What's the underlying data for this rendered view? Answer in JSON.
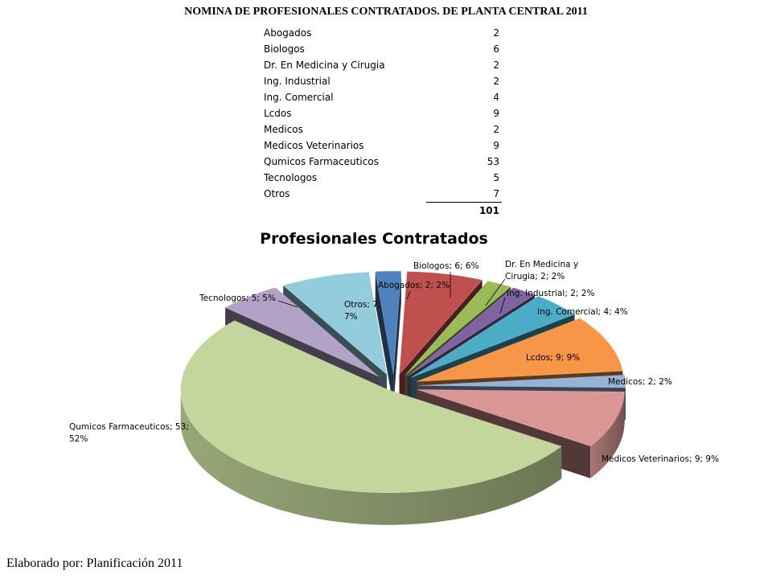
{
  "page_title": "NOMINA DE PROFESIONALES CONTRATADOS. DE PLANTA CENTRAL 2011",
  "table": {
    "rows": [
      {
        "label": "Abogados",
        "value": "2"
      },
      {
        "label": "Biologos",
        "value": "6"
      },
      {
        "label": "Dr. En Medicina y Cirugia",
        "value": "2"
      },
      {
        "label": "Ing. Industrial",
        "value": "2"
      },
      {
        "label": "Ing. Comercial",
        "value": "4"
      },
      {
        "label": "Lcdos",
        "value": "9"
      },
      {
        "label": "Medicos",
        "value": "2"
      },
      {
        "label": "Medicos Veterinarios",
        "value": "9"
      },
      {
        "label": "Qumicos Farmaceuticos",
        "value": "53"
      },
      {
        "label": "Tecnologos",
        "value": "5"
      },
      {
        "label": "Otros",
        "value": "7"
      }
    ],
    "total": "101"
  },
  "chart_data": {
    "type": "pie",
    "title": "Profesionales Contratados",
    "style": "exploded 3D pie",
    "slices": [
      {
        "name": "Abogados",
        "value": 2,
        "percent": "2%",
        "color": "#4F81BD",
        "label": "Abogados; 2; 2%"
      },
      {
        "name": "Biologos",
        "value": 6,
        "percent": "6%",
        "color": "#C0504D",
        "label": "Biologos; 6; 6%"
      },
      {
        "name": "Dr. En Medicina y Cirugia",
        "value": 2,
        "percent": "2%",
        "color": "#9BBB59",
        "label_lines": [
          "Dr. En Medicina y",
          "Cirugia; 2; 2%"
        ]
      },
      {
        "name": "Ing. Industrial",
        "value": 2,
        "percent": "2%",
        "color": "#8064A2",
        "label": "Ing. Industrial; 2; 2%"
      },
      {
        "name": "Ing. Comercial",
        "value": 4,
        "percent": "4%",
        "color": "#4BACC6",
        "label": "Ing. Comercial; 4; 4%"
      },
      {
        "name": "Lcdos",
        "value": 9,
        "percent": "9%",
        "color": "#F79646",
        "label": "Lcdos; 9; 9%"
      },
      {
        "name": "Medicos",
        "value": 2,
        "percent": "2%",
        "color": "#95B3D7",
        "label": "Medicos; 2; 2%"
      },
      {
        "name": "Medicos Veterinarios",
        "value": 9,
        "percent": "9%",
        "color": "#D99694",
        "label": "Medicos Veterinarios; 9; 9%"
      },
      {
        "name": "Qumicos Farmaceuticos",
        "value": 53,
        "percent": "52%",
        "color": "#C3D69B",
        "label_lines": [
          "Qumicos Farmaceuticos; 53;",
          "52%"
        ]
      },
      {
        "name": "Tecnologos",
        "value": 5,
        "percent": "5%",
        "color": "#B2A2C7",
        "label": "Tecnologos; 5; 5%"
      },
      {
        "name": "Otros",
        "value": 7,
        "percent": "7%",
        "color": "#93CDDD",
        "label_lines": [
          "Otros; 7;",
          "7%"
        ]
      }
    ]
  },
  "footer": "Elaborado por: Planificación 2011"
}
